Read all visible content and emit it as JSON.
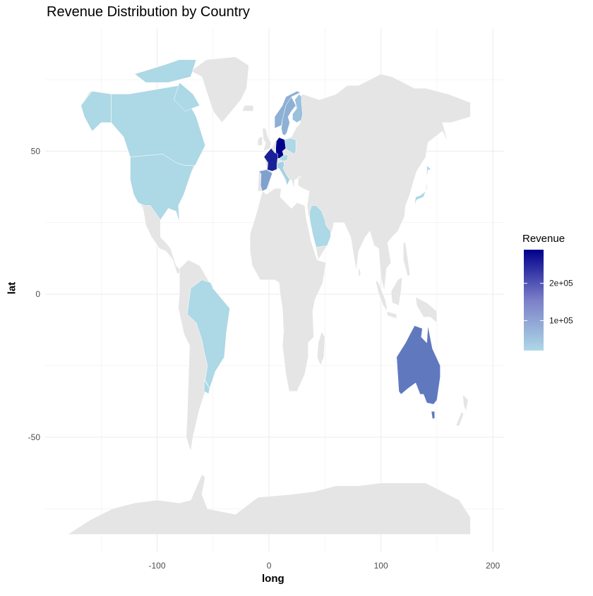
{
  "title": "Revenue Distribution by Country",
  "axes": {
    "x": {
      "label": "long",
      "ticks": [
        "-100",
        "0",
        "100",
        "200"
      ],
      "tick_values": [
        -100,
        0,
        100,
        200
      ],
      "range": [
        -200,
        210
      ]
    },
    "y": {
      "label": "lat",
      "ticks": [
        "50",
        "0",
        "-50"
      ],
      "tick_values": [
        50,
        0,
        -50
      ],
      "range": [
        -90,
        93
      ]
    }
  },
  "legend": {
    "title": "Revenue",
    "labels": [
      "2e+05",
      "1e+05"
    ],
    "label_values": [
      200000,
      100000
    ],
    "low_color": "#add8e6",
    "high_color": "#00008b"
  },
  "colors": {
    "land": "#e5e5e5",
    "border": "#ffffff",
    "grid": "#ebebeb"
  },
  "chart_data": {
    "type": "choropleth",
    "title": "Revenue Distribution by Country",
    "xlabel": "long",
    "ylabel": "lat",
    "value_name": "Revenue",
    "grid": true,
    "legend_position": "right",
    "regions": [
      {
        "country": "Germany",
        "revenue": 290000
      },
      {
        "country": "France",
        "revenue": 250000
      },
      {
        "country": "Australia",
        "revenue": 140000
      },
      {
        "country": "Spain",
        "revenue": 90000
      },
      {
        "country": "Sweden",
        "revenue": 70000
      },
      {
        "country": "Norway",
        "revenue": 70000
      },
      {
        "country": "Finland",
        "revenue": 50000
      },
      {
        "country": "Italy",
        "revenue": 30000
      },
      {
        "country": "USA",
        "revenue": 20000
      },
      {
        "country": "Canada",
        "revenue": 20000
      },
      {
        "country": "Brazil",
        "revenue": 20000
      },
      {
        "country": "Saudi Arabia",
        "revenue": 20000
      },
      {
        "country": "Japan",
        "revenue": 20000
      },
      {
        "country": "Poland",
        "revenue": 20000
      },
      {
        "country": "Austria",
        "revenue": 20000
      },
      {
        "country": "Uruguay",
        "revenue": 20000
      }
    ]
  }
}
